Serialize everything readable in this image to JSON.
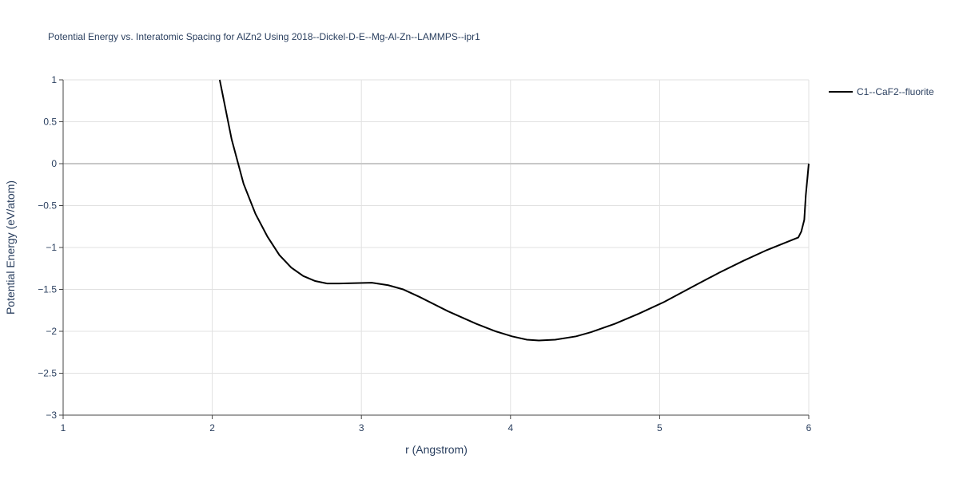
{
  "chart_data": {
    "type": "line",
    "title": "Potential Energy vs. Interatomic Spacing for AlZn2 Using 2018--Dickel-D-E--Mg-Al-Zn--LAMMPS--ipr1",
    "x_label": "r (Angstrom)",
    "y_label": "Potential Energy (eV/atom)",
    "xlim": [
      1,
      6
    ],
    "ylim": [
      -3,
      1
    ],
    "xticks": [
      1,
      2,
      3,
      4,
      5,
      6
    ],
    "yticks": [
      {
        "value": -3,
        "label": "−3"
      },
      {
        "value": -2.5,
        "label": "−2.5"
      },
      {
        "value": -2,
        "label": "−2"
      },
      {
        "value": -1.5,
        "label": "−1.5"
      },
      {
        "value": -1,
        "label": "−1"
      },
      {
        "value": -0.5,
        "label": "−0.5"
      },
      0,
      0.5,
      1
    ],
    "grid": true,
    "legend": "top-right",
    "series": [
      {
        "name": "C1--CaF2--fluorite",
        "color": "#000000",
        "x": [
          2.05,
          2.13,
          2.21,
          2.29,
          2.37,
          2.45,
          2.53,
          2.61,
          2.69,
          2.77,
          2.85,
          3.07,
          3.18,
          3.28,
          3.39,
          3.58,
          3.77,
          3.9,
          4.01,
          4.11,
          4.19,
          4.3,
          4.44,
          4.54,
          4.7,
          4.86,
          5.03,
          5.24,
          5.4,
          5.56,
          5.72,
          5.86,
          5.93,
          5.95,
          5.97,
          5.98,
          6.0
        ],
        "values": [
          1.0,
          0.29,
          -0.24,
          -0.6,
          -0.87,
          -1.09,
          -1.24,
          -1.34,
          -1.4,
          -1.43,
          -1.43,
          -1.42,
          -1.45,
          -1.5,
          -1.59,
          -1.76,
          -1.91,
          -2.0,
          -2.06,
          -2.1,
          -2.11,
          -2.1,
          -2.06,
          -2.01,
          -1.91,
          -1.79,
          -1.65,
          -1.45,
          -1.3,
          -1.16,
          -1.03,
          -0.93,
          -0.88,
          -0.81,
          -0.67,
          -0.38,
          0.0
        ]
      }
    ]
  }
}
